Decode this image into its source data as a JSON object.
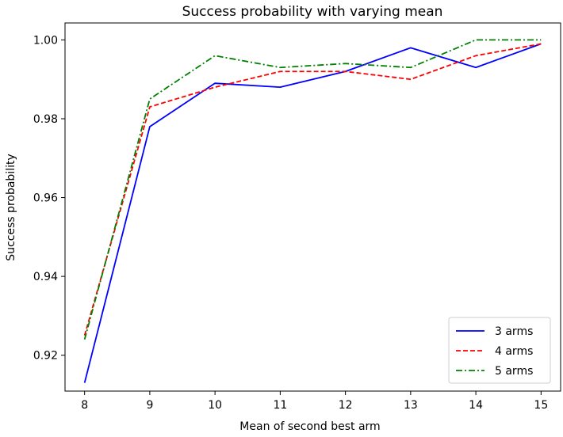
{
  "chart_data": {
    "type": "line",
    "title": "Success probability with varying mean",
    "xlabel": "Mean of second best arm",
    "ylabel": "Success probability",
    "x": [
      8,
      9,
      10,
      11,
      12,
      13,
      14,
      15
    ],
    "x_ticks": [
      "8",
      "9",
      "10",
      "11",
      "12",
      "13",
      "14",
      "15"
    ],
    "y_ticks": [
      "0.92",
      "0.94",
      "0.96",
      "0.98",
      "1.00"
    ],
    "y_tick_values": [
      0.92,
      0.94,
      0.96,
      0.98,
      1.0
    ],
    "xlim": [
      7.7,
      15.3
    ],
    "ylim": [
      0.9109,
      1.0043
    ],
    "grid": false,
    "legend_position": "bottom-right",
    "series": [
      {
        "name": "3 arms",
        "color": "#0000ff",
        "dash": "solid",
        "values": [
          0.913,
          0.978,
          0.989,
          0.988,
          0.992,
          0.998,
          0.993,
          0.999
        ]
      },
      {
        "name": "4 arms",
        "color": "#ff0000",
        "dash": "dashed",
        "values": [
          0.925,
          0.983,
          0.988,
          0.992,
          0.992,
          0.99,
          0.996,
          0.999
        ]
      },
      {
        "name": "5 arms",
        "color": "#008000",
        "dash": "dashdot",
        "values": [
          0.924,
          0.985,
          0.996,
          0.993,
          0.994,
          0.993,
          1.0,
          1.0
        ]
      }
    ]
  }
}
